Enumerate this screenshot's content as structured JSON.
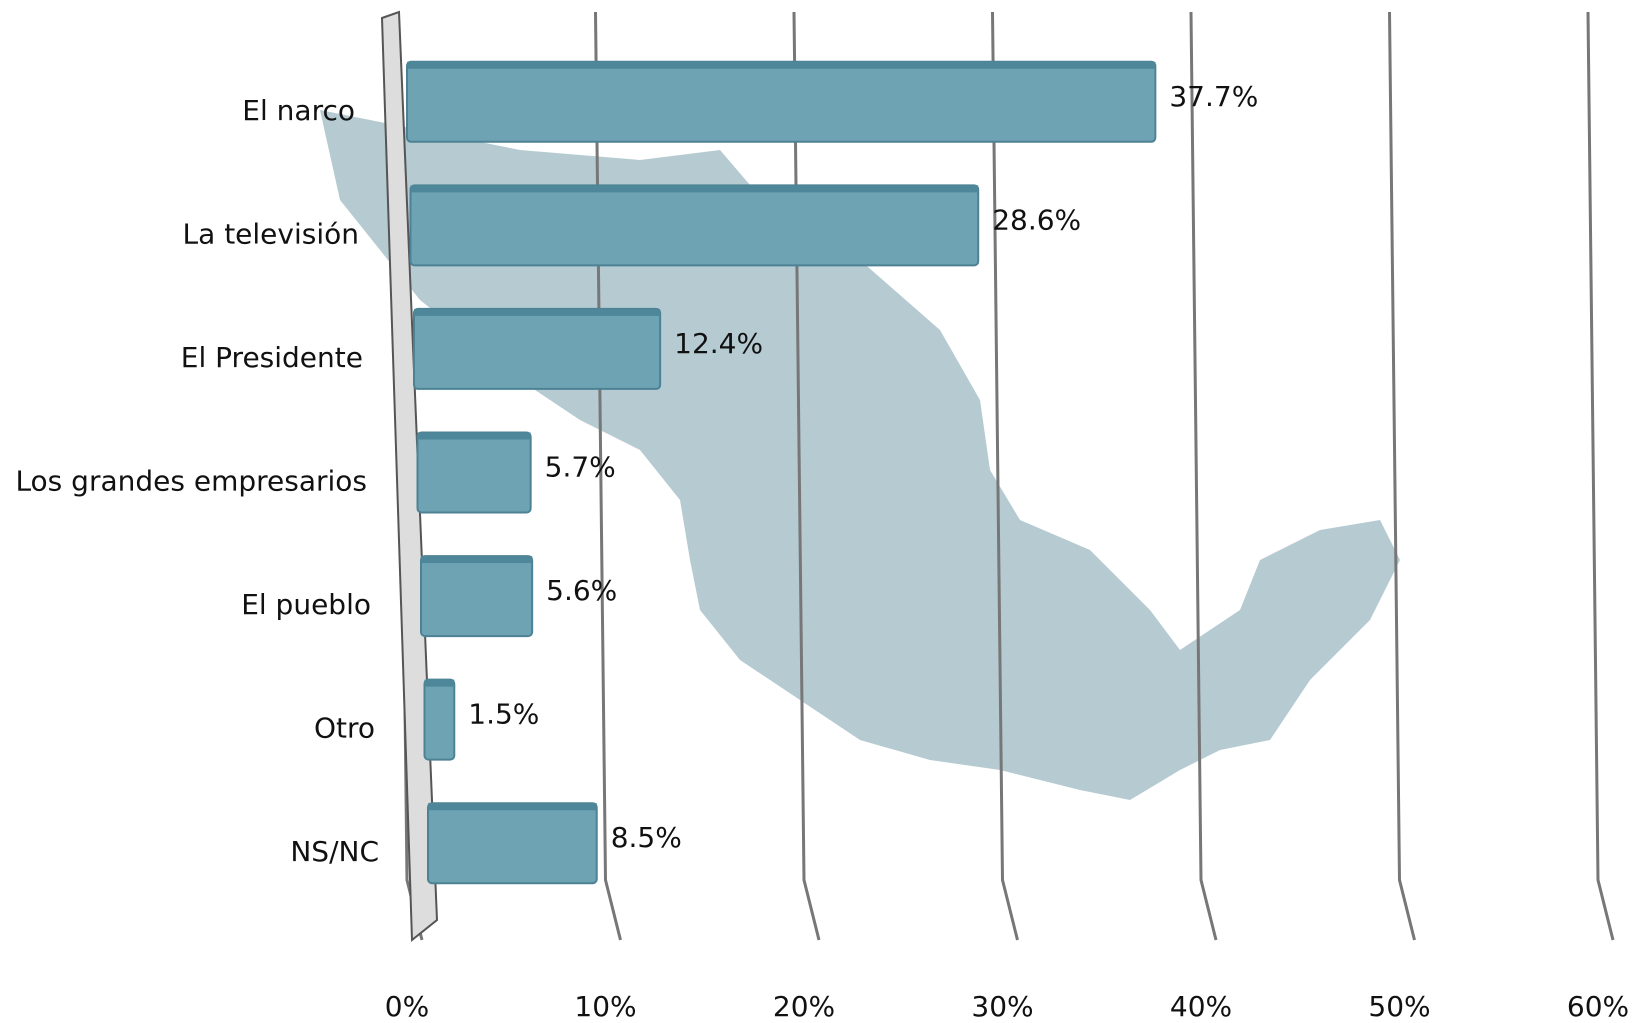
{
  "chart_data": {
    "type": "bar",
    "orientation": "horizontal",
    "categories": [
      "El narco",
      "La televisión",
      "El Presidente",
      "Los grandes empresarios",
      "El pueblo",
      "Otro",
      "NS/NC"
    ],
    "values": [
      37.7,
      28.6,
      12.4,
      5.7,
      5.6,
      1.5,
      8.5
    ],
    "value_labels": [
      "37.7%",
      "28.6%",
      "12.4%",
      "5.7%",
      "5.6%",
      "1.5%",
      "8.5%"
    ],
    "color": "#6ea3b4",
    "xlim": [
      0,
      60
    ],
    "xticks": [
      {
        "value": 0,
        "label": "0%"
      },
      {
        "value": 10,
        "label": "10%"
      },
      {
        "value": 20,
        "label": "20%"
      },
      {
        "value": 30,
        "label": "30%"
      },
      {
        "value": 40,
        "label": "40%"
      },
      {
        "value": 50,
        "label": "50%"
      },
      {
        "value": 60,
        "label": "60%"
      }
    ],
    "grid": true
  }
}
